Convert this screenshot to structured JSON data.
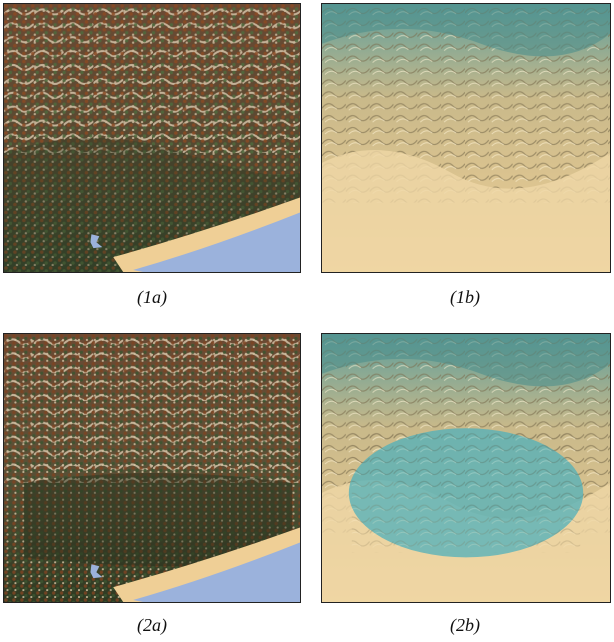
{
  "figure": {
    "captions": {
      "p1a": "(1a)",
      "p1b": "(1b)",
      "p2a": "(2a)",
      "p2b": "(2b)"
    }
  },
  "colors": {
    "forest_dark": "#2f3a22",
    "forest_green": "#4f6a3d",
    "tree_brown": "#8a4a24",
    "ridge_light": "#d7c7a9",
    "water": "#9bb2dc",
    "sand": "#efcf96",
    "terrain_tan": "#e8c98d",
    "terrain_teal": "#5e9e9a",
    "highlight_teal": "#4fb0bb"
  }
}
